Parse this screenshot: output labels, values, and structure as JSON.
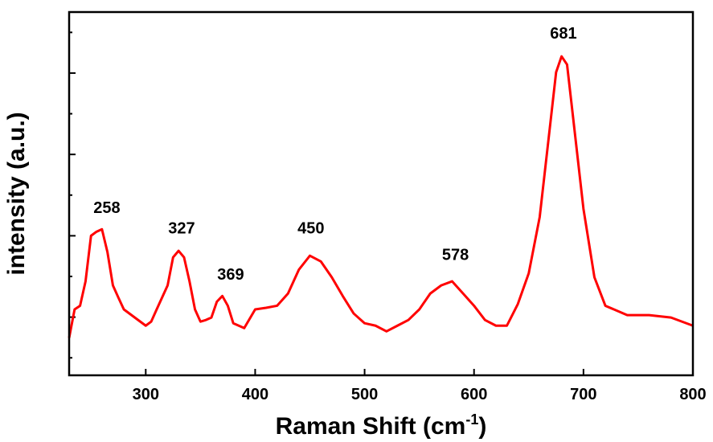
{
  "chart_data": {
    "type": "line",
    "xlabel": [
      "Raman Shift (cm",
      "-1",
      ")"
    ],
    "ylabel": "intensity (a.u.)",
    "xlim": [
      230,
      800
    ],
    "ylim": [
      -0.43,
      8.5
    ],
    "xticks": [
      300,
      400,
      500,
      600,
      700,
      800
    ],
    "yticks": [
      0,
      1,
      2,
      3,
      4,
      5,
      6,
      7,
      8
    ],
    "series": [
      {
        "color": "#ff0000",
        "x": [
          230,
          235,
          240,
          245,
          250,
          255,
          260,
          265,
          270,
          275,
          280,
          290,
          300,
          305,
          310,
          320,
          325,
          330,
          335,
          340,
          345,
          350,
          355,
          360,
          365,
          370,
          375,
          380,
          385,
          390,
          400,
          410,
          420,
          430,
          440,
          450,
          460,
          470,
          480,
          490,
          500,
          510,
          520,
          530,
          540,
          550,
          560,
          570,
          580,
          590,
          600,
          610,
          620,
          630,
          640,
          650,
          660,
          670,
          675,
          680,
          685,
          690,
          700,
          710,
          720,
          740,
          760,
          780,
          800
        ],
        "values": [
          0.49,
          1.19,
          1.28,
          1.88,
          3.0,
          3.1,
          3.16,
          2.6,
          1.78,
          1.48,
          1.19,
          0.99,
          0.79,
          0.89,
          1.19,
          1.78,
          2.47,
          2.63,
          2.47,
          1.88,
          1.19,
          0.89,
          0.93,
          0.99,
          1.38,
          1.52,
          1.28,
          0.85,
          0.79,
          0.73,
          1.19,
          1.23,
          1.28,
          1.58,
          2.17,
          2.51,
          2.37,
          1.98,
          1.52,
          1.09,
          0.85,
          0.79,
          0.65,
          0.79,
          0.93,
          1.19,
          1.58,
          1.78,
          1.88,
          1.58,
          1.28,
          0.93,
          0.79,
          0.79,
          1.32,
          2.08,
          3.46,
          5.83,
          7.02,
          7.41,
          7.21,
          6.03,
          3.66,
          1.98,
          1.28,
          1.05,
          1.05,
          0.99,
          0.79
        ]
      }
    ],
    "annotations": [
      {
        "text": "258",
        "x": 264.5,
        "y": 3.56
      },
      {
        "text": "327",
        "x": 332.8,
        "y": 3.06
      },
      {
        "text": "369",
        "x": 377.6,
        "y": 1.92
      },
      {
        "text": "450",
        "x": 451,
        "y": 3.06
      },
      {
        "text": "578",
        "x": 583,
        "y": 2.41
      },
      {
        "text": "681",
        "x": 681.7,
        "y": 7.85
      }
    ]
  }
}
